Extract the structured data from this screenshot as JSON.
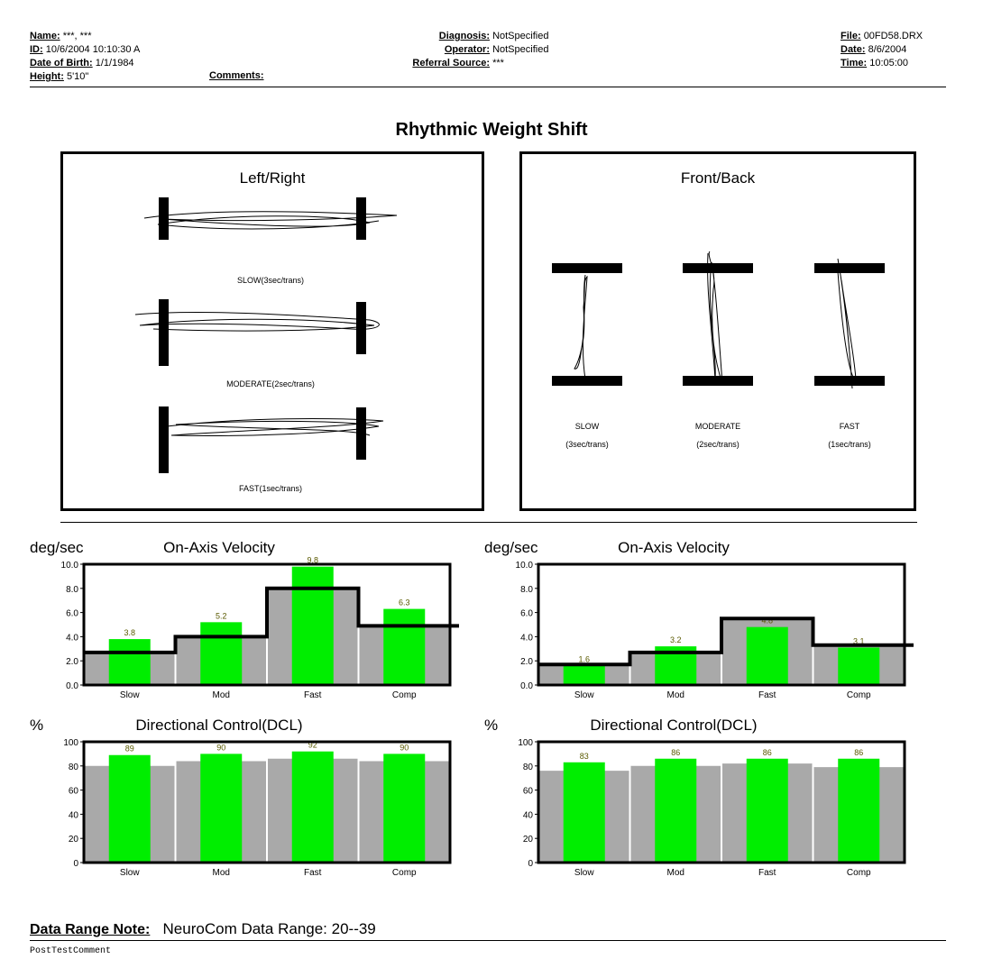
{
  "header": {
    "left": [
      {
        "label": "Name:",
        "value": "***, ***"
      },
      {
        "label": "ID:",
        "value": "10/6/2004 10:10:30 A"
      },
      {
        "label": "Date of Birth:",
        "value": "1/1/1984"
      },
      {
        "label": "Height:",
        "value": "5'10\""
      }
    ],
    "comments_label": "Comments:",
    "middle": [
      {
        "label": "Diagnosis:",
        "value": "NotSpecified"
      },
      {
        "label": "Operator:",
        "value": "NotSpecified"
      },
      {
        "label": "Referral Source:",
        "value": "***"
      }
    ],
    "right": [
      {
        "label": "File:",
        "value": "00FD58.DRX"
      },
      {
        "label": "Date:",
        "value": "8/6/2004"
      },
      {
        "label": "Time:",
        "value": "10:05:00"
      }
    ]
  },
  "title": "Rhythmic Weight Shift",
  "left_right_panel": {
    "title": "Left/Right",
    "captions": [
      "SLOW(3sec/trans)",
      "MODERATE(2sec/trans)",
      "FAST(1sec/trans)"
    ]
  },
  "front_back_panel": {
    "title": "Front/Back",
    "captions": [
      {
        "line1": "SLOW",
        "line2": "(3sec/trans)"
      },
      {
        "line1": "MODERATE",
        "line2": "(2sec/trans)"
      },
      {
        "line1": "FAST",
        "line2": "(1sec/trans)"
      }
    ]
  },
  "colors": {
    "bar": "#00ee00",
    "band": "#a9a9a9",
    "line": "#000000"
  },
  "chart_data": [
    {
      "type": "bar",
      "title": "On-Axis Velocity",
      "ylabel": "deg/sec",
      "categories": [
        "Slow",
        "Mod",
        "Fast",
        "Comp"
      ],
      "ylim": [
        0,
        10
      ],
      "yticks": [
        "0.0",
        "2.0",
        "4.0",
        "6.0",
        "8.0",
        "10.0"
      ],
      "values": [
        3.8,
        5.2,
        9.8,
        6.3
      ],
      "data_labels": [
        "3.8",
        "5.2",
        "9.8",
        "6.3"
      ],
      "band_lower": [
        2.3,
        3.8,
        6.7,
        4.3
      ],
      "band_upper": [
        2.7,
        4.0,
        8.0,
        4.9
      ]
    },
    {
      "type": "bar",
      "title": "On-Axis Velocity",
      "ylabel": "deg/sec",
      "categories": [
        "Slow",
        "Mod",
        "Fast",
        "Comp"
      ],
      "ylim": [
        0,
        10
      ],
      "yticks": [
        "0.0",
        "2.0",
        "4.0",
        "6.0",
        "8.0",
        "10.0"
      ],
      "values": [
        1.6,
        3.2,
        4.8,
        3.1
      ],
      "data_labels": [
        "1.6",
        "3.2",
        "4.8",
        "3.1"
      ],
      "band_lower": [
        1.5,
        2.3,
        4.2,
        2.5
      ],
      "band_upper": [
        1.7,
        2.7,
        5.5,
        3.3
      ]
    },
    {
      "type": "bar",
      "title": "Directional Control(DCL)",
      "ylabel": "%",
      "categories": [
        "Slow",
        "Mod",
        "Fast",
        "Comp"
      ],
      "ylim": [
        0,
        100
      ],
      "yticks": [
        "0",
        "20",
        "40",
        "60",
        "80",
        "100"
      ],
      "values": [
        89,
        90,
        92,
        90
      ],
      "data_labels": [
        "89",
        "90",
        "92",
        "90"
      ],
      "band_upper": [
        80,
        84,
        86,
        84
      ]
    },
    {
      "type": "bar",
      "title": "Directional Control(DCL)",
      "ylabel": "%",
      "categories": [
        "Slow",
        "Mod",
        "Fast",
        "Comp"
      ],
      "ylim": [
        0,
        100
      ],
      "yticks": [
        "0",
        "20",
        "40",
        "60",
        "80",
        "100"
      ],
      "values": [
        83,
        86,
        86,
        86
      ],
      "data_labels": [
        "83",
        "86",
        "86",
        "86"
      ],
      "band_upper": [
        76,
        80,
        82,
        79
      ]
    }
  ],
  "note": {
    "label": "Data Range Note:",
    "text": "NeuroCom Data Range: 20--39"
  },
  "post_comment": "PostTestComment"
}
